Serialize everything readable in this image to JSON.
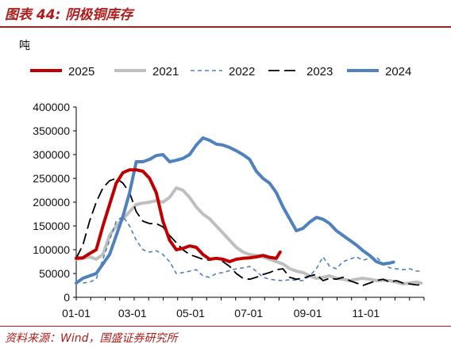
{
  "figure": {
    "title": "图表 44:  阴极铜库存",
    "source": "资料来源：Wind，国盛证券研究所"
  },
  "colors": {
    "2025": "#c00000",
    "2021": "#bfbfbf",
    "2022": "#4f81bd",
    "2023": "#000000",
    "2024": "#4f81bd",
    "accent": "#b01c1c"
  },
  "chart_data": {
    "type": "line",
    "unit_label": "吨",
    "xlabel": "",
    "ylabel": "",
    "x_ticks": [
      "01-01",
      "03-01",
      "05-01",
      "07-01",
      "09-01",
      "11-01"
    ],
    "y_ticks": [
      "0",
      "50000",
      "100000",
      "150000",
      "200000",
      "250000",
      "300000",
      "350000",
      "400000"
    ],
    "ylim": [
      0,
      400000
    ],
    "xlim": [
      0,
      365
    ],
    "grid": false,
    "legend_position": "top",
    "series": [
      {
        "name": "2025",
        "style": "solid-thick",
        "points": [
          [
            0,
            82000
          ],
          [
            7,
            83000
          ],
          [
            14,
            92000
          ],
          [
            21,
            100000
          ],
          [
            28,
            150000
          ],
          [
            35,
            195000
          ],
          [
            42,
            240000
          ],
          [
            49,
            262000
          ],
          [
            56,
            268000
          ],
          [
            63,
            268000
          ],
          [
            70,
            265000
          ],
          [
            77,
            250000
          ],
          [
            84,
            220000
          ],
          [
            91,
            160000
          ],
          [
            98,
            120000
          ],
          [
            105,
            100000
          ],
          [
            112,
            103000
          ],
          [
            119,
            108000
          ],
          [
            126,
            105000
          ],
          [
            133,
            90000
          ],
          [
            140,
            80000
          ],
          [
            147,
            82000
          ],
          [
            154,
            80000
          ],
          [
            161,
            75000
          ],
          [
            168,
            80000
          ],
          [
            175,
            82000
          ],
          [
            182,
            83000
          ],
          [
            189,
            85000
          ],
          [
            196,
            88000
          ],
          [
            203,
            84000
          ],
          [
            210,
            82000
          ],
          [
            214,
            95000
          ]
        ]
      },
      {
        "name": "2021",
        "style": "solid-gray",
        "points": [
          [
            0,
            80000
          ],
          [
            7,
            82000
          ],
          [
            14,
            85000
          ],
          [
            21,
            80000
          ],
          [
            28,
            90000
          ],
          [
            35,
            130000
          ],
          [
            42,
            150000
          ],
          [
            49,
            165000
          ],
          [
            56,
            180000
          ],
          [
            63,
            195000
          ],
          [
            70,
            198000
          ],
          [
            77,
            200000
          ],
          [
            84,
            203000
          ],
          [
            91,
            200000
          ],
          [
            98,
            210000
          ],
          [
            105,
            230000
          ],
          [
            112,
            225000
          ],
          [
            119,
            210000
          ],
          [
            126,
            190000
          ],
          [
            133,
            175000
          ],
          [
            140,
            165000
          ],
          [
            147,
            150000
          ],
          [
            154,
            135000
          ],
          [
            161,
            120000
          ],
          [
            168,
            105000
          ],
          [
            175,
            95000
          ],
          [
            182,
            90000
          ],
          [
            189,
            88000
          ],
          [
            196,
            85000
          ],
          [
            203,
            80000
          ],
          [
            210,
            75000
          ],
          [
            217,
            70000
          ],
          [
            224,
            60000
          ],
          [
            231,
            55000
          ],
          [
            238,
            52000
          ],
          [
            245,
            45000
          ],
          [
            252,
            40000
          ],
          [
            259,
            42000
          ],
          [
            266,
            45000
          ],
          [
            273,
            40000
          ],
          [
            280,
            38000
          ],
          [
            287,
            35000
          ],
          [
            294,
            38000
          ],
          [
            301,
            40000
          ],
          [
            308,
            38000
          ],
          [
            315,
            35000
          ],
          [
            322,
            36000
          ],
          [
            329,
            35000
          ],
          [
            336,
            32000
          ],
          [
            343,
            28000
          ],
          [
            350,
            30000
          ],
          [
            357,
            32000
          ],
          [
            362,
            30000
          ]
        ]
      },
      {
        "name": "2022",
        "style": "dashed",
        "points": [
          [
            0,
            35000
          ],
          [
            7,
            30000
          ],
          [
            14,
            32000
          ],
          [
            21,
            38000
          ],
          [
            28,
            80000
          ],
          [
            35,
            120000
          ],
          [
            42,
            160000
          ],
          [
            49,
            170000
          ],
          [
            56,
            150000
          ],
          [
            63,
            120000
          ],
          [
            70,
            100000
          ],
          [
            77,
            95000
          ],
          [
            84,
            98000
          ],
          [
            91,
            90000
          ],
          [
            98,
            75000
          ],
          [
            105,
            50000
          ],
          [
            112,
            52000
          ],
          [
            119,
            55000
          ],
          [
            126,
            58000
          ],
          [
            133,
            45000
          ],
          [
            140,
            42000
          ],
          [
            147,
            50000
          ],
          [
            154,
            52000
          ],
          [
            161,
            56000
          ],
          [
            168,
            60000
          ],
          [
            175,
            62000
          ],
          [
            182,
            65000
          ],
          [
            189,
            55000
          ],
          [
            196,
            42000
          ],
          [
            203,
            38000
          ],
          [
            210,
            36000
          ],
          [
            217,
            35000
          ],
          [
            224,
            37000
          ],
          [
            231,
            36000
          ],
          [
            238,
            35000
          ],
          [
            245,
            45000
          ],
          [
            252,
            60000
          ],
          [
            259,
            85000
          ],
          [
            266,
            65000
          ],
          [
            273,
            60000
          ],
          [
            280,
            75000
          ],
          [
            287,
            80000
          ],
          [
            294,
            85000
          ],
          [
            301,
            78000
          ],
          [
            308,
            82000
          ],
          [
            315,
            85000
          ],
          [
            322,
            70000
          ],
          [
            329,
            62000
          ],
          [
            336,
            60000
          ],
          [
            343,
            58000
          ],
          [
            350,
            60000
          ],
          [
            357,
            55000
          ],
          [
            362,
            55000
          ]
        ]
      },
      {
        "name": "2023",
        "style": "dashed-long",
        "points": [
          [
            0,
            82000
          ],
          [
            7,
            110000
          ],
          [
            14,
            160000
          ],
          [
            21,
            200000
          ],
          [
            28,
            230000
          ],
          [
            35,
            245000
          ],
          [
            42,
            250000
          ],
          [
            49,
            240000
          ],
          [
            56,
            220000
          ],
          [
            63,
            180000
          ],
          [
            70,
            160000
          ],
          [
            77,
            155000
          ],
          [
            84,
            155000
          ],
          [
            91,
            148000
          ],
          [
            98,
            130000
          ],
          [
            105,
            115000
          ],
          [
            112,
            100000
          ],
          [
            119,
            90000
          ],
          [
            126,
            85000
          ],
          [
            133,
            80000
          ],
          [
            140,
            78000
          ],
          [
            147,
            82000
          ],
          [
            154,
            75000
          ],
          [
            161,
            65000
          ],
          [
            168,
            50000
          ],
          [
            175,
            40000
          ],
          [
            182,
            38000
          ],
          [
            189,
            42000
          ],
          [
            196,
            48000
          ],
          [
            203,
            52000
          ],
          [
            210,
            58000
          ],
          [
            217,
            60000
          ],
          [
            224,
            42000
          ],
          [
            231,
            38000
          ],
          [
            238,
            40000
          ],
          [
            245,
            45000
          ],
          [
            252,
            48000
          ],
          [
            259,
            35000
          ],
          [
            266,
            40000
          ],
          [
            273,
            38000
          ],
          [
            280,
            42000
          ],
          [
            287,
            35000
          ],
          [
            294,
            30000
          ],
          [
            301,
            25000
          ],
          [
            308,
            30000
          ],
          [
            315,
            35000
          ],
          [
            322,
            38000
          ],
          [
            329,
            32000
          ],
          [
            336,
            35000
          ],
          [
            343,
            30000
          ],
          [
            350,
            28000
          ],
          [
            357,
            26000
          ],
          [
            362,
            26000
          ]
        ]
      },
      {
        "name": "2024",
        "style": "solid-thick",
        "points": [
          [
            0,
            30000
          ],
          [
            7,
            40000
          ],
          [
            14,
            45000
          ],
          [
            21,
            50000
          ],
          [
            28,
            70000
          ],
          [
            35,
            90000
          ],
          [
            42,
            130000
          ],
          [
            49,
            170000
          ],
          [
            56,
            220000
          ],
          [
            63,
            285000
          ],
          [
            70,
            285000
          ],
          [
            77,
            290000
          ],
          [
            84,
            298000
          ],
          [
            91,
            300000
          ],
          [
            98,
            285000
          ],
          [
            105,
            288000
          ],
          [
            112,
            292000
          ],
          [
            119,
            300000
          ],
          [
            126,
            320000
          ],
          [
            133,
            335000
          ],
          [
            140,
            330000
          ],
          [
            147,
            322000
          ],
          [
            154,
            320000
          ],
          [
            161,
            315000
          ],
          [
            168,
            308000
          ],
          [
            175,
            300000
          ],
          [
            182,
            290000
          ],
          [
            189,
            265000
          ],
          [
            196,
            250000
          ],
          [
            203,
            240000
          ],
          [
            210,
            220000
          ],
          [
            217,
            190000
          ],
          [
            224,
            165000
          ],
          [
            231,
            140000
          ],
          [
            238,
            145000
          ],
          [
            245,
            158000
          ],
          [
            252,
            168000
          ],
          [
            259,
            164000
          ],
          [
            266,
            155000
          ],
          [
            273,
            140000
          ],
          [
            280,
            130000
          ],
          [
            287,
            120000
          ],
          [
            294,
            110000
          ],
          [
            301,
            98000
          ],
          [
            308,
            88000
          ],
          [
            315,
            75000
          ],
          [
            322,
            70000
          ],
          [
            329,
            72000
          ],
          [
            333,
            74000
          ]
        ]
      }
    ]
  }
}
